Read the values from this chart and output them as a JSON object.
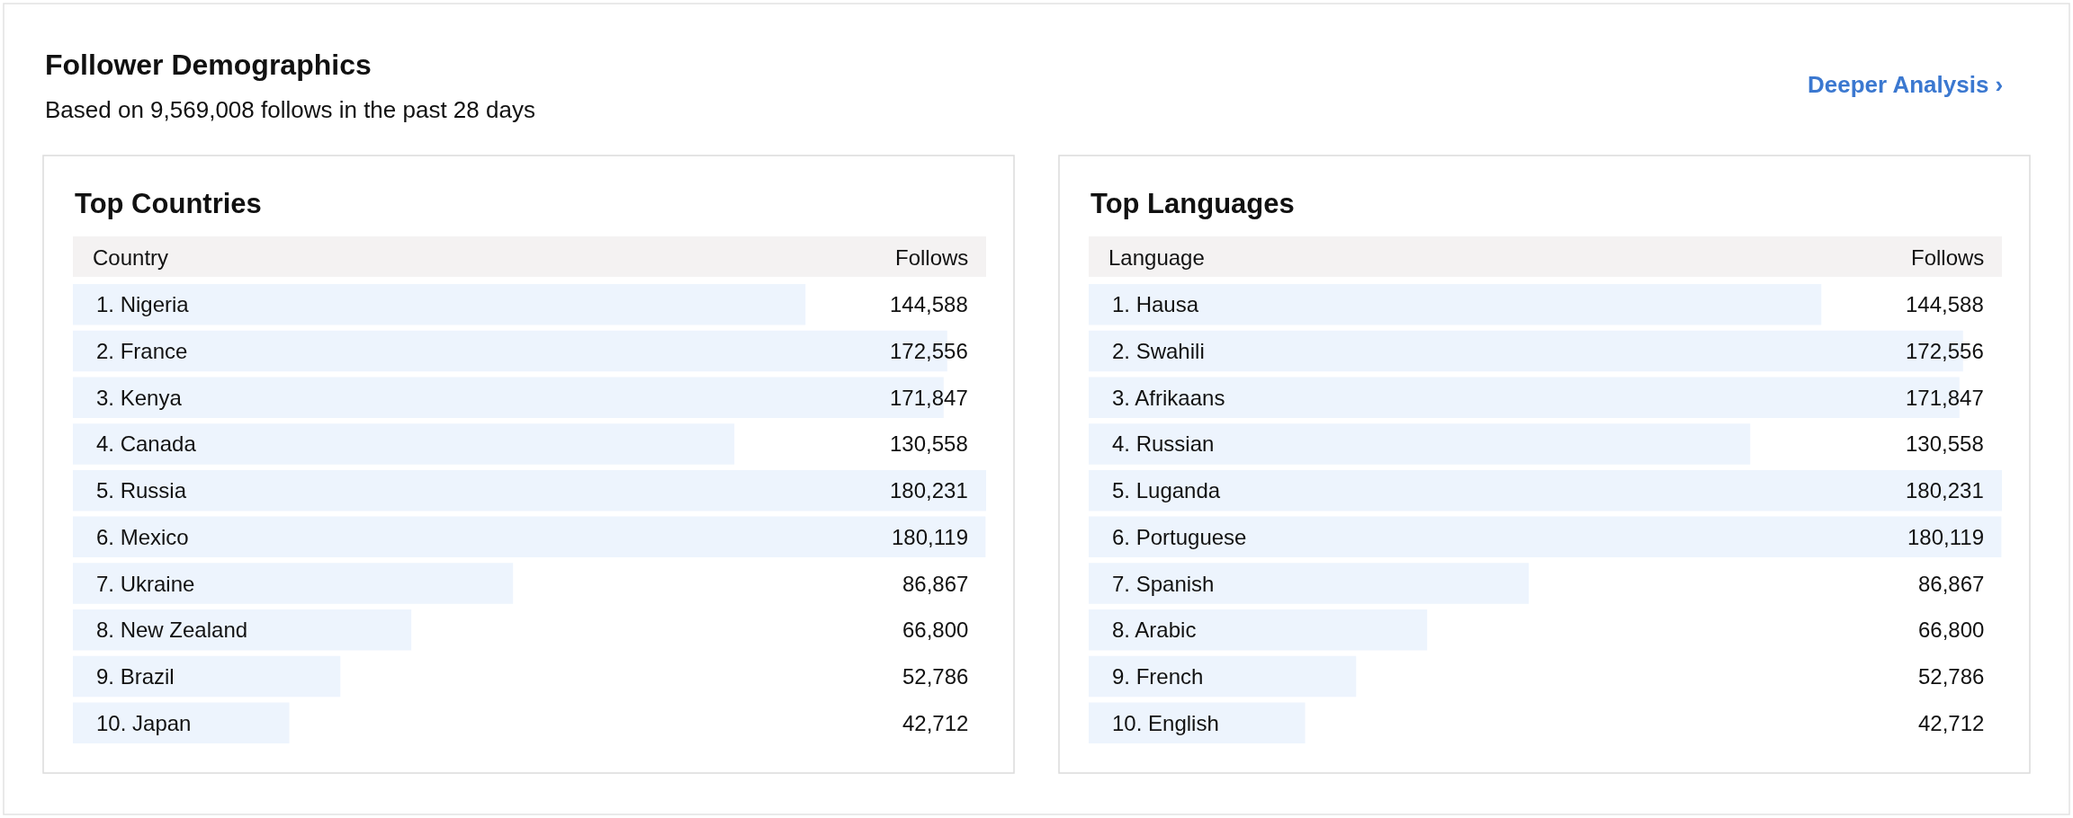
{
  "chart_data": [
    {
      "type": "other",
      "title": "Follower Demographics",
      "subtitle": "Based on 9,569,008 follows in the past 28 days",
      "annotations": [
        "Deeper Analysis ›"
      ]
    },
    {
      "type": "bar",
      "orientation": "horizontal",
      "tick_labels": false,
      "title": "Top Countries",
      "ylabel": "Country",
      "xlabel": "Follows",
      "color": "#edf4fd",
      "categories": [
        "1. Nigeria",
        "2. France",
        "3. Kenya",
        "4. Canada",
        "5. Russia",
        "6. Mexico",
        "7. Ukraine",
        "8. New Zealand",
        "9. Brazil",
        "10. Japan"
      ],
      "values": [
        144588,
        172556,
        171847,
        130558,
        180231,
        180119,
        86867,
        66800,
        52786,
        42712
      ],
      "value_labels": [
        "144,588",
        "172,556",
        "171,847",
        "130,558",
        "180,231",
        "180,119",
        "86,867",
        "66,800",
        "52,786",
        "42,712"
      ]
    },
    {
      "type": "bar",
      "orientation": "horizontal",
      "tick_labels": false,
      "title": "Top Languages",
      "ylabel": "Language",
      "xlabel": "Follows",
      "color": "#edf4fd",
      "categories": [
        "1. Hausa",
        "2. Swahili",
        "3. Afrikaans",
        "4. Russian",
        "5. Luganda",
        "6. Portuguese",
        "7. Spanish",
        "8. Arabic",
        "9. French",
        "10. English"
      ],
      "values": [
        144588,
        172556,
        171847,
        130558,
        180231,
        180119,
        86867,
        66800,
        52786,
        42712
      ],
      "value_labels": [
        "144,588",
        "172,556",
        "171,847",
        "130,558",
        "180,231",
        "180,119",
        "86,867",
        "66,800",
        "52,786",
        "42,712"
      ]
    }
  ]
}
